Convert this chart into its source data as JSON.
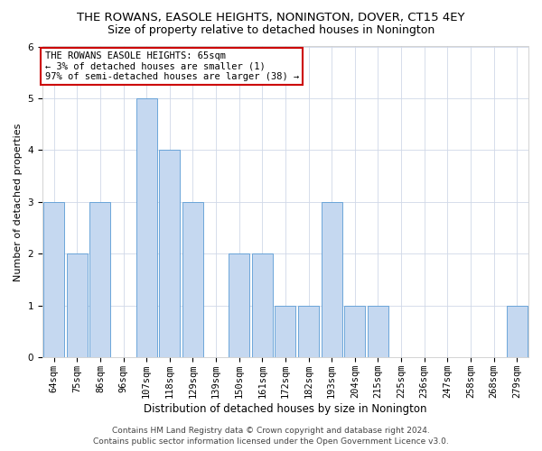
{
  "title": "THE ROWANS, EASOLE HEIGHTS, NONINGTON, DOVER, CT15 4EY",
  "subtitle": "Size of property relative to detached houses in Nonington",
  "xlabel": "Distribution of detached houses by size in Nonington",
  "ylabel": "Number of detached properties",
  "categories": [
    "64sqm",
    "75sqm",
    "86sqm",
    "96sqm",
    "107sqm",
    "118sqm",
    "129sqm",
    "139sqm",
    "150sqm",
    "161sqm",
    "172sqm",
    "182sqm",
    "193sqm",
    "204sqm",
    "215sqm",
    "225sqm",
    "236sqm",
    "247sqm",
    "258sqm",
    "268sqm",
    "279sqm"
  ],
  "values": [
    3,
    2,
    3,
    0,
    5,
    4,
    3,
    0,
    2,
    2,
    1,
    1,
    3,
    1,
    1,
    0,
    0,
    0,
    0,
    0,
    1
  ],
  "bar_color": "#c5d8f0",
  "bar_edge_color": "#5a9bd5",
  "ylim": [
    0,
    6
  ],
  "yticks": [
    0,
    1,
    2,
    3,
    4,
    5,
    6
  ],
  "annotation_line1": "THE ROWANS EASOLE HEIGHTS: 65sqm",
  "annotation_line2": "← 3% of detached houses are smaller (1)",
  "annotation_line3": "97% of semi-detached houses are larger (38) →",
  "annotation_box_color": "#ffffff",
  "annotation_box_edge_color": "#cc0000",
  "footer_line1": "Contains HM Land Registry data © Crown copyright and database right 2024.",
  "footer_line2": "Contains public sector information licensed under the Open Government Licence v3.0.",
  "background_color": "#ffffff",
  "grid_color": "#d0d8e8",
  "title_fontsize": 9.5,
  "subtitle_fontsize": 9,
  "xlabel_fontsize": 8.5,
  "ylabel_fontsize": 8,
  "tick_fontsize": 7.5,
  "annotation_fontsize": 7.5,
  "footer_fontsize": 6.5
}
